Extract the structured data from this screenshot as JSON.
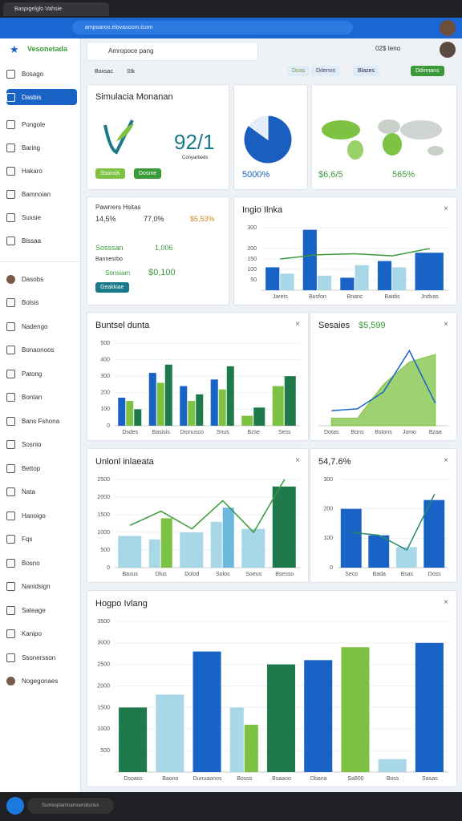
{
  "browser": {
    "tab": "Baspigelglo Vahsie",
    "url": "ampoaroo.elovasoom.tcom"
  },
  "app": {
    "logo": "Vesonetada",
    "search": "Amropoce pang",
    "account": "02$ Ieno"
  },
  "sidebar": {
    "items": [
      "Bosago",
      "Dasbis",
      "Pongole",
      "Baring",
      "Hakaro",
      "Bamnoian",
      "Suxsie",
      "Bissaa"
    ],
    "active": 1,
    "section": [
      "Dasobs",
      "Bolsis",
      "Nadengo",
      "Bonaonoos",
      "Patong",
      "Bontan",
      "Bans Fshona",
      "Sosnio",
      "Bettop",
      "Nata",
      "Hanoigo",
      "Fqs",
      "Bosno",
      "Nanidsign",
      "Sateage",
      "Kanipo",
      "Ssonersson",
      "Nogegonaes"
    ]
  },
  "toolbar": {
    "tabs": [
      "Boxsac",
      "Stk"
    ],
    "buttons": [
      "Doas",
      "Ddenos",
      "Blazes",
      "Ddinnans"
    ]
  },
  "summary": {
    "title": "Simulacia Monanan",
    "kpi": "92/1",
    "kpi_note": "Conyarbeds",
    "buttons": [
      "Ssonsis",
      "Dosme"
    ]
  },
  "pie": {
    "label": "5000%",
    "values": [
      85,
      15
    ],
    "colors": [
      "#1a5fc0",
      "#e3eefa"
    ]
  },
  "map": {
    "figures": [
      "$6,6/5",
      "565%"
    ]
  },
  "stats": {
    "title": "Pawrrers Hsitas",
    "figures": [
      "14,5%",
      "77,0%",
      "$5,53%"
    ],
    "rows": [
      {
        "label": "Sosssan",
        "value": "1,006"
      },
      {
        "label": "Sonsiam",
        "value": "$0,100"
      }
    ],
    "note": "Bannesrbo",
    "button": "Geakkiae"
  },
  "charts": [
    {
      "title": "Ingio Ilnka",
      "type": "bar",
      "categories": [
        "Jarets",
        "Bosfon",
        "Bnanc",
        "Baidis",
        "Jndvas"
      ],
      "ylim": [
        0,
        300
      ],
      "yticks": [
        50,
        100,
        150,
        200,
        300
      ],
      "series": [
        {
          "color": "#1a63c6",
          "values": [
            110,
            290,
            60,
            140,
            180
          ]
        },
        {
          "color": "#a8d8e8",
          "values": [
            80,
            70,
            120,
            110,
            null
          ]
        },
        {
          "color": "#3a9a3a",
          "kind": "line",
          "values": [
            150,
            170,
            175,
            165,
            200
          ]
        }
      ]
    },
    {
      "title": "Buntsel dunta",
      "type": "bar",
      "categories": [
        "Dsdes",
        "Basisis",
        "Dionusco",
        "Snus",
        "Bzse",
        "Sess"
      ],
      "ylim": [
        0,
        500
      ],
      "yticks": [
        0,
        100,
        200,
        300,
        400,
        500
      ],
      "series": [
        {
          "color": "#1a63c6",
          "values": [
            170,
            320,
            240,
            280,
            null,
            null
          ]
        },
        {
          "color": "#7dc243",
          "values": [
            150,
            260,
            150,
            220,
            60,
            240
          ]
        },
        {
          "color": "#1e7a4a",
          "values": [
            100,
            370,
            190,
            360,
            110,
            300
          ]
        }
      ]
    },
    {
      "title": "Sesaies",
      "note": "$5,599",
      "type": "area",
      "categories": [
        "Dotas",
        "Bons",
        "Bstons",
        "Jomo",
        "Bzaa"
      ],
      "ylim": [
        0,
        220
      ],
      "series": [
        {
          "color": "#7dc243",
          "kind": "area",
          "values": [
            20,
            20,
            110,
            170,
            190
          ]
        },
        {
          "color": "#1a63c6",
          "kind": "line",
          "values": [
            40,
            45,
            90,
            200,
            60
          ]
        }
      ]
    },
    {
      "title": "Unlonl inlaeata",
      "type": "bar",
      "categories": [
        "Baxus",
        "Dlus",
        "Dolod",
        "Solos",
        "Soeus",
        "Bsesso"
      ],
      "ylim": [
        0,
        2500
      ],
      "yticks": [
        0,
        500,
        1000,
        1500,
        2000,
        2500
      ],
      "series": [
        {
          "color": "#a8d8e8",
          "values": [
            900,
            800,
            1000,
            1300,
            1100,
            null
          ]
        },
        {
          "color": "#7dc243",
          "values": [
            null,
            1400,
            null,
            null,
            null,
            null
          ]
        },
        {
          "color": "#6cb8dc",
          "values": [
            null,
            null,
            null,
            1700,
            null,
            null
          ]
        },
        {
          "color": "#1e7a4a",
          "values": [
            null,
            null,
            null,
            null,
            null,
            2300
          ]
        },
        {
          "color": "#3a9a3a",
          "kind": "line",
          "values": [
            1200,
            1600,
            1100,
            1900,
            1000,
            2500
          ]
        }
      ]
    },
    {
      "title": "54,7.6%",
      "type": "bar",
      "categories": [
        "Seco",
        "Bada",
        "Bsas",
        "Doss"
      ],
      "ylim": [
        0,
        300
      ],
      "yticks": [
        0,
        100,
        200,
        300
      ],
      "series": [
        {
          "color": "#1a63c6",
          "values": [
            200,
            110,
            null,
            230
          ]
        },
        {
          "color": "#a8d8e8",
          "values": [
            null,
            null,
            70,
            null
          ]
        },
        {
          "color": "#2a8a6a",
          "kind": "line",
          "values": [
            120,
            110,
            60,
            250
          ]
        }
      ]
    },
    {
      "title": "Hogpo Ivlang",
      "type": "bar",
      "categories": [
        "Dsoass",
        "Baono",
        "Dunuaonos",
        "Bosss",
        "Bsaaoo",
        "Dbana",
        "Sa800",
        "Boss",
        "Sasas"
      ],
      "ylim": [
        0,
        3500
      ],
      "yticks": [
        500,
        1000,
        1500,
        2000,
        2500,
        3000,
        3500
      ],
      "series": [
        {
          "color": "#1e7a4a",
          "values": [
            1500,
            null,
            null,
            null,
            2500,
            null,
            null,
            null,
            null
          ]
        },
        {
          "color": "#a8d8e8",
          "values": [
            null,
            1800,
            null,
            1500,
            null,
            null,
            null,
            300,
            null
          ]
        },
        {
          "color": "#1a63c6",
          "values": [
            null,
            null,
            2800,
            null,
            null,
            2600,
            null,
            null,
            3000
          ]
        },
        {
          "color": "#7dc243",
          "values": [
            null,
            null,
            null,
            1100,
            null,
            null,
            2900,
            null,
            null
          ]
        }
      ]
    }
  ],
  "taskbar": {
    "search": "Sumeoplamnamsersbunus"
  }
}
